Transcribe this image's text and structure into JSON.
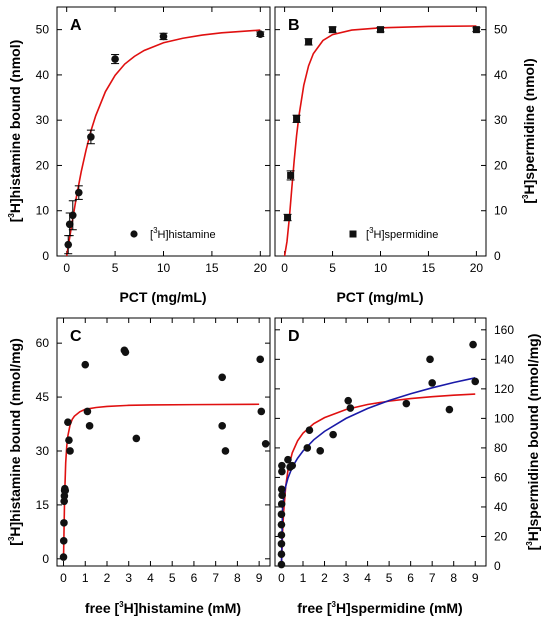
{
  "colors": {
    "fit_red": "#e01010",
    "fit_blue": "#1a1aa8",
    "marker": "#111111"
  },
  "chart_data": [
    {
      "panel": "A",
      "type": "scatter",
      "xlabel": "PCT (mg/mL)",
      "ylabel": "histamine bound (nmol)",
      "ylabel_sup": "3",
      "xlim": [
        -1,
        21
      ],
      "ylim": [
        0,
        55
      ],
      "xticks": [
        0,
        5,
        10,
        15,
        20
      ],
      "yticks": [
        0,
        10,
        20,
        30,
        40,
        50
      ],
      "y_axis_side": "left",
      "legend": {
        "label": "histamine",
        "label_sup": "3",
        "marker": "circle",
        "position": "bottom-right"
      },
      "series": [
        {
          "name": "histamine",
          "marker": "circle",
          "x": [
            0.16,
            0.31,
            0.63,
            1.25,
            2.5,
            5,
            10,
            20
          ],
          "y": [
            2.5,
            7.0,
            9.0,
            14.0,
            26.3,
            43.5,
            48.5,
            49.0
          ],
          "err": [
            2.0,
            2.5,
            3.2,
            1.5,
            1.5,
            1.0,
            0.7,
            0.5
          ]
        }
      ],
      "fits": [
        {
          "color": "red",
          "x": [
            0,
            0.5,
            1,
            1.5,
            2,
            2.5,
            3,
            4,
            5,
            6,
            7,
            8,
            10,
            12,
            14,
            16,
            18,
            20
          ],
          "y": [
            0.0,
            6.6,
            13.0,
            18.6,
            23.4,
            27.6,
            31.0,
            36.3,
            39.9,
            42.4,
            44.1,
            45.4,
            47.1,
            48.1,
            48.8,
            49.3,
            49.6,
            49.9
          ]
        }
      ]
    },
    {
      "panel": "B",
      "type": "scatter",
      "xlabel": "PCT (mg/mL)",
      "ylabel": "spermidine (nmol)",
      "ylabel_sup": "3",
      "xlim": [
        -1,
        21
      ],
      "ylim": [
        0,
        55
      ],
      "xticks": [
        0,
        5,
        10,
        15,
        20
      ],
      "yticks": [
        0,
        10,
        20,
        30,
        40,
        50
      ],
      "y_axis_side": "right",
      "legend": {
        "label": "spermidine",
        "label_sup": "3",
        "marker": "square",
        "position": "bottom-right"
      },
      "series": [
        {
          "name": "spermidine",
          "marker": "square",
          "x": [
            0.31,
            0.63,
            1.25,
            2.5,
            5,
            10,
            20
          ],
          "y": [
            8.5,
            17.8,
            30.3,
            47.3,
            50.0,
            50.0,
            50.0
          ],
          "err": [
            0.7,
            1.0,
            0.8,
            0.7,
            0.6,
            0.5,
            0.4
          ]
        }
      ],
      "fits": [
        {
          "color": "red",
          "x": [
            0,
            0.25,
            0.5,
            0.75,
            1,
            1.25,
            1.5,
            2,
            2.5,
            3,
            4,
            5,
            7,
            10,
            15,
            20
          ],
          "y": [
            0.0,
            3.2,
            8.5,
            14.9,
            21.1,
            26.6,
            31.0,
            37.7,
            42.0,
            44.7,
            47.6,
            48.9,
            49.9,
            50.4,
            50.7,
            50.8
          ]
        }
      ]
    },
    {
      "panel": "C",
      "type": "scatter",
      "xlabel": "free histamine (mM)",
      "xlabel_prefix": "free [",
      "xlabel_sup": "3",
      "xlabel_suffix": "H]histamine (mM)",
      "ylabel": "histamine bound (nmol/mg)",
      "ylabel_sup": "3",
      "xlim": [
        -0.3,
        9.5
      ],
      "ylim": [
        -2,
        67
      ],
      "xticks": [
        0,
        1,
        2,
        3,
        4,
        5,
        6,
        7,
        8,
        9
      ],
      "yticks": [
        0,
        15,
        30,
        45,
        60
      ],
      "y_axis_side": "left",
      "series": [
        {
          "name": "histamine",
          "marker": "circle",
          "x": [
            0.0,
            0.01,
            0.02,
            0.03,
            0.04,
            0.05,
            0.06,
            0.08,
            0.2,
            0.25,
            0.3,
            1.0,
            1.1,
            1.2,
            2.8,
            2.85,
            3.35,
            7.3,
            7.3,
            7.45,
            9.05,
            9.1,
            9.3
          ],
          "y": [
            0.5,
            5.0,
            10.0,
            16.0,
            17.5,
            19.0,
            19.5,
            19.0,
            38.0,
            33.0,
            30.0,
            54.0,
            41.0,
            37.0,
            58.0,
            57.5,
            33.5,
            50.5,
            37.0,
            30.0,
            55.5,
            41.0,
            32.0
          ]
        }
      ],
      "fits": [
        {
          "color": "red",
          "x": [
            0,
            0.05,
            0.1,
            0.15,
            0.2,
            0.3,
            0.4,
            0.5,
            0.75,
            1,
            1.5,
            2,
            3,
            4,
            6,
            9
          ],
          "y": [
            0.0,
            17.2,
            26.7,
            31.4,
            34.2,
            37.2,
            38.8,
            39.7,
            40.9,
            41.6,
            42.1,
            42.4,
            42.7,
            42.8,
            42.9,
            43.0
          ]
        }
      ]
    },
    {
      "panel": "D",
      "type": "scatter",
      "xlabel": "free spermidine (mM)",
      "xlabel_prefix": "free [",
      "xlabel_sup": "3",
      "xlabel_suffix": "H]spermidine (mM)",
      "ylabel": "spermidine bound (nmol/mg)",
      "ylabel_sup": "3",
      "xlim": [
        -0.3,
        9.5
      ],
      "ylim": [
        0,
        168
      ],
      "xticks": [
        0,
        1,
        2,
        3,
        4,
        5,
        6,
        7,
        8,
        9
      ],
      "yticks": [
        0,
        20,
        40,
        60,
        80,
        100,
        120,
        140,
        160
      ],
      "y_axis_side": "right",
      "series": [
        {
          "name": "spermidine",
          "marker": "circle",
          "x": [
            0.0,
            0.0,
            0.0,
            0.0,
            0.0,
            0.0,
            0.01,
            0.01,
            0.02,
            0.02,
            0.03,
            0.3,
            0.4,
            0.5,
            1.2,
            1.3,
            1.8,
            2.4,
            3.1,
            3.2,
            5.8,
            6.9,
            7.0,
            7.8,
            8.9,
            9.0
          ],
          "y": [
            1.0,
            8.0,
            15.0,
            21.0,
            28.0,
            35.0,
            42.0,
            52.0,
            64.0,
            68.0,
            48.0,
            72.0,
            67.0,
            68.0,
            80.0,
            92.0,
            78.0,
            89.0,
            112.0,
            107.0,
            110.0,
            140.0,
            124.0,
            106.0,
            150.0,
            125.0
          ]
        }
      ],
      "fits": [
        {
          "color": "red",
          "x": [
            0,
            0.05,
            0.1,
            0.2,
            0.3,
            0.5,
            0.75,
            1,
            1.5,
            2,
            3,
            4,
            5,
            6,
            7,
            8,
            9
          ],
          "y": [
            0.0,
            22.0,
            36.5,
            54.3,
            64.7,
            76.6,
            84.8,
            90.0,
            96.4,
            100.5,
            106.0,
            109.4,
            111.7,
            113.4,
            114.7,
            115.7,
            116.5
          ]
        },
        {
          "color": "blue",
          "x": [
            0,
            0.05,
            0.1,
            0.2,
            0.3,
            0.5,
            0.75,
            1,
            1.5,
            2,
            3,
            4,
            5,
            6,
            7,
            8,
            9
          ],
          "y": [
            0.0,
            39.0,
            46.0,
            54.2,
            59.5,
            66.9,
            73.0,
            77.9,
            85.5,
            91.2,
            100.0,
            106.7,
            112.1,
            116.7,
            120.7,
            124.3,
            127.5
          ]
        }
      ]
    }
  ]
}
